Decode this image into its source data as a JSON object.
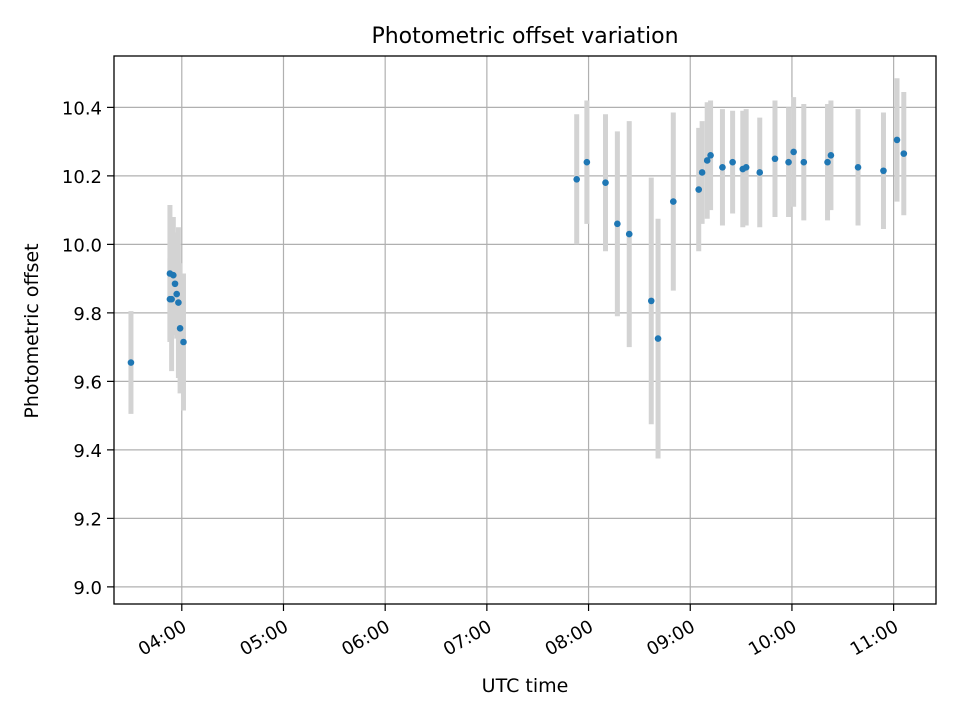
{
  "chart_data": {
    "type": "scatter",
    "title": "Photometric offset variation",
    "xlabel": "UTC time",
    "ylabel": "Photometric offset",
    "x_axis_type": "time",
    "xlim": [
      "03:20",
      "11:25"
    ],
    "ylim": [
      8.95,
      10.55
    ],
    "xticks": [
      "04:00",
      "05:00",
      "06:00",
      "07:00",
      "08:00",
      "09:00",
      "10:00",
      "11:00"
    ],
    "yticks": [
      9.0,
      9.2,
      9.4,
      9.6,
      9.8,
      10.0,
      10.2,
      10.4
    ],
    "ytick_labels": [
      "9.0",
      "9.2",
      "9.4",
      "9.6",
      "9.8",
      "10.0",
      "10.2",
      "10.4"
    ],
    "grid": true,
    "colors": {
      "points": "#1f77b4",
      "error_bars": "#d3d3d3",
      "grid": "#b0b0b0"
    },
    "series": [
      {
        "x": [
          "03:30",
          "03:53",
          "03:54",
          "03:55",
          "03:56",
          "03:57",
          "03:58",
          "03:59",
          "04:01",
          "03:53",
          "07:53",
          "07:59",
          "08:10",
          "08:17",
          "08:24",
          "08:37",
          "08:41",
          "08:50",
          "09:05",
          "09:07",
          "09:10",
          "09:12",
          "09:19",
          "09:25",
          "09:31",
          "09:33",
          "09:41",
          "09:50",
          "09:58",
          "10:01",
          "10:07",
          "10:21",
          "10:23",
          "10:39",
          "10:54",
          "11:06",
          "11:02"
        ],
        "y": [
          9.655,
          9.915,
          9.84,
          9.91,
          9.885,
          9.855,
          9.83,
          9.755,
          9.715,
          9.84,
          10.19,
          10.24,
          10.18,
          10.06,
          10.03,
          9.835,
          9.725,
          10.125,
          10.16,
          10.21,
          10.245,
          10.26,
          10.225,
          10.24,
          10.22,
          10.225,
          10.21,
          10.25,
          10.24,
          10.27,
          10.24,
          10.24,
          10.26,
          10.225,
          10.215,
          10.265,
          10.305
        ],
        "yerr": [
          0.15,
          0.2,
          0.21,
          0.17,
          0.15,
          0.13,
          0.22,
          0.19,
          0.2,
          0.12,
          0.19,
          0.18,
          0.2,
          0.27,
          0.33,
          0.36,
          0.35,
          0.26,
          0.18,
          0.15,
          0.17,
          0.16,
          0.17,
          0.15,
          0.17,
          0.17,
          0.16,
          0.17,
          0.16,
          0.16,
          0.17,
          0.17,
          0.16,
          0.17,
          0.17,
          0.18,
          0.18
        ]
      }
    ]
  }
}
